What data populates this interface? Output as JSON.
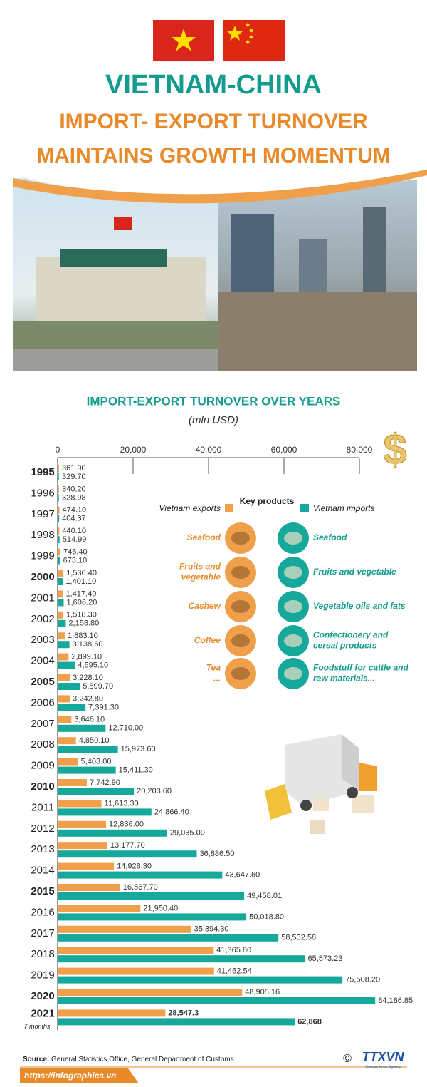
{
  "header": {
    "title": "VIETNAM-CHINA",
    "subtitle": [
      "IMPORT- EXPORT TURNOVER",
      "MAINTAINS GROWTH MOMENTUM"
    ]
  },
  "chart_data": {
    "type": "bar",
    "orientation": "horizontal",
    "title": "IMPORT-EXPORT TURNOVER OVER YEARS",
    "subtitle": "(mln USD)",
    "categories": [
      "1995",
      "1996",
      "1997",
      "1998",
      "1999",
      "2000",
      "2001",
      "2002",
      "2003",
      "2004",
      "2005",
      "2006",
      "2007",
      "2008",
      "2009",
      "2010",
      "2011",
      "2012",
      "2013",
      "2014",
      "2015",
      "2016",
      "2017",
      "2018",
      "2019",
      "2020",
      "2021"
    ],
    "category_note": "7 months",
    "xlim": [
      0,
      80000
    ],
    "xticks": [
      0,
      {
        "value": 20000,
        "label": "20,000"
      },
      {
        "value": 40000,
        "label": "40,000"
      },
      {
        "value": 60000,
        "label": "60,000"
      },
      {
        "value": 80000,
        "label": "80,000"
      }
    ],
    "series": [
      {
        "name": "Vietnam exports",
        "color": "#f0a04b",
        "values": [
          361.9,
          340.2,
          474.1,
          440.1,
          746.4,
          1536.4,
          1417.4,
          1518.3,
          1883.1,
          2899.1,
          3228.1,
          3242.8,
          3646.1,
          4850.1,
          5403.0,
          7742.9,
          11613.3,
          12836.0,
          13177.7,
          14928.3,
          16567.7,
          21950.4,
          35394.3,
          41365.8,
          41462.54,
          48905.16,
          28547.3
        ],
        "value_labels": [
          "361.90",
          "340.20",
          "474.10",
          "440.10",
          "746.40",
          "1,536.40",
          "1,417.40",
          "1,518.30",
          "1,883.10",
          "2,899.10",
          "3,228.10",
          "3,242.80",
          "3,646.10",
          "4,850.10",
          "5,403.00",
          "7,742.90",
          "11,613.30",
          "12,836.00",
          "13,177.70",
          "14,928.30",
          "16,567.70",
          "21,950.40",
          "35,394.30",
          "41,365.80",
          "41,462.54",
          "48,905.16",
          "28,547.3"
        ]
      },
      {
        "name": "Vietnam imports",
        "color": "#16a89a",
        "values": [
          329.7,
          328.98,
          404.37,
          514.99,
          673.1,
          1401.1,
          1606.2,
          2158.8,
          3138.6,
          4595.1,
          5899.7,
          7391.3,
          12710.0,
          15973.6,
          15411.3,
          20203.6,
          24866.4,
          29035.0,
          36886.5,
          43647.6,
          49458.01,
          50018.8,
          58532.58,
          65573.23,
          75508.2,
          84186.85,
          62868
        ],
        "value_labels": [
          "329.70",
          "328.98",
          "404.37",
          "514.99",
          "673.10",
          "1,401.10",
          "1,606.20",
          "2,158.80",
          "3,138.60",
          "4,595.10",
          "5,899.70",
          "7,391.30",
          "12,710.00",
          "15,973.60",
          "15,411.30",
          "20,203.60",
          "24,866.40",
          "29,035.00",
          "36,886.50",
          "43,647.60",
          "49,458.01",
          "50,018.80",
          "58,532.58",
          "65,573.23",
          "75,508.20",
          "84,186.85",
          "62,868"
        ]
      }
    ]
  },
  "key_products": {
    "title": "Key products",
    "exports": [
      [
        "Seafood"
      ],
      [
        "Fruits and",
        "vegetable"
      ],
      [
        "Cashew"
      ],
      [
        "Coffee"
      ],
      [
        "Tea",
        "..."
      ]
    ],
    "imports": [
      [
        "Seafood"
      ],
      [
        "Fruits and vegetable"
      ],
      [
        "Vegetable oils and fats"
      ],
      [
        "Confectionery and",
        "cereal products"
      ],
      [
        "Foodstuff for cattle and",
        "raw materials..."
      ]
    ]
  },
  "footer": {
    "source_label": "Source:",
    "source": "General Statistics Office, General Department of Customs",
    "website": "https://infographics.vn",
    "copyright": "©",
    "logo": "TTXVN",
    "logo_subtitle": "Vietnam News Agency"
  }
}
